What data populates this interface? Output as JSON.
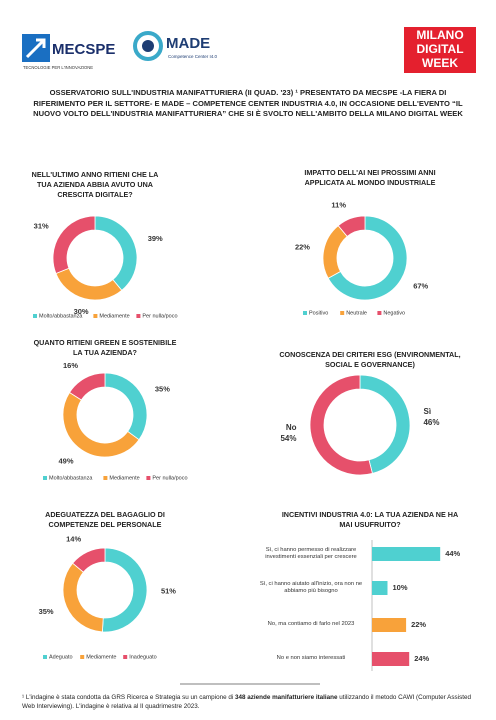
{
  "header": {
    "mecspe": "MECSPE",
    "mecspe_tagline": "TECNOLOGIE PER L'INNOVAZIONE",
    "made": "MADE",
    "made_tagline": "Competence Center I4.0",
    "mdw": [
      "MILANO",
      "DIGITAL",
      "WEEK"
    ]
  },
  "title": "OSSERVATORIO SULL'INDUSTRIA MANIFATTURIERA (II QUAD. '23) ¹ PRESENTATO DA MECSPE -LA FIERA DI RIFERIMENTO PER IL SETTORE- E MADE – COMPETENCE CENTER INDUSTRIA 4.0, IN OCCASIONE DELL'EVENTO “IL NUOVO VOLTO DELL'INDUSTRIA MANIFATTURIERA” CHE SI È SVOLTO NELL'AMBITO DELLA MILANO DIGITAL WEEK",
  "chart_data": [
    {
      "type": "donut",
      "title": "NELL'ULTIMO ANNO RITIENI CHE LA TUA AZIENDA ABBIA AVUTO UNA CRESCITA DIGITALE?",
      "categories": [
        "Molto/abbastanza",
        "Mediamente",
        "Per nulla/poco"
      ],
      "values": [
        39,
        30,
        31
      ],
      "value_labels": [
        "39%",
        "30%",
        "31%"
      ],
      "colors": [
        "#4fd0d0",
        "#f8a23a",
        "#e6506b"
      ],
      "legend": true
    },
    {
      "type": "donut",
      "title": "IMPATTO DELL'AI NEI PROSSIMI ANNI APPLICATA AL MONDO INDUSTRIALE",
      "categories": [
        "Positivo",
        "Neutrale",
        "Negativo"
      ],
      "values": [
        67,
        22,
        11
      ],
      "value_labels": [
        "67%",
        "22%",
        "11%"
      ],
      "colors": [
        "#4fd0d0",
        "#f8a23a",
        "#e6506b"
      ],
      "legend": true
    },
    {
      "type": "donut",
      "title": "QUANTO RITIENI GREEN E SOSTENIBILE LA TUA AZIENDA?",
      "categories": [
        "Molto/abbastanza",
        "Mediamente",
        "Per nulla/poco"
      ],
      "values": [
        35,
        49,
        16
      ],
      "value_labels": [
        "35%",
        "49%",
        "16%"
      ],
      "colors": [
        "#4fd0d0",
        "#f8a23a",
        "#e6506b"
      ],
      "legend": true
    },
    {
      "type": "donut",
      "title": "CONOSCENZA DEI CRITERI ESG (ENVIRONMENTAL, SOCIAL E GOVERNANCE)",
      "categories": [
        "Sì",
        "No"
      ],
      "values": [
        46,
        54
      ],
      "value_labels": [
        "46%",
        "54%"
      ],
      "colors": [
        "#4fd0d0",
        "#e6506b"
      ],
      "legend": false
    },
    {
      "type": "donut",
      "title": "ADEGUATEZZA DEL BAGAGLIO DI COMPETENZE DEL PERSONALE",
      "categories": [
        "Adeguato",
        "Mediamente",
        "Inadeguato"
      ],
      "values": [
        51,
        35,
        14
      ],
      "value_labels": [
        "51%",
        "35%",
        "14%"
      ],
      "colors": [
        "#4fd0d0",
        "#f8a23a",
        "#e6506b"
      ],
      "legend": true
    },
    {
      "type": "hbar",
      "title": "INCENTIVI INDUSTRIA 4.0: LA TUA AZIENDA NE HA MAI USUFRUITO?",
      "categories": [
        "Sì, ci hanno permesso di realizzare investimenti essenziali per crescere",
        "Sì, ci hanno aiutato all'inizio, ora non ne abbiamo più bisogno",
        "No, ma contiamo di farlo nel 2023",
        "No e non siamo interessati"
      ],
      "values": [
        44,
        10,
        22,
        24
      ],
      "value_labels": [
        "44%",
        "10%",
        "22%",
        "24%"
      ],
      "colors": [
        "#4fd0d0",
        "#4fd0d0",
        "#f8a23a",
        "#e6506b"
      ]
    }
  ],
  "footnote": {
    "before": "¹ L'indagine è stata condotta da GRS Ricerca e Strategia su un campione di ",
    "bold": "348 aziende manifatturiere italiane",
    "after": " utilizzando il metodo CAWI (Computer Assisted Web Interviewing). L'indagine è relativa al II quadrimestre 2023."
  }
}
